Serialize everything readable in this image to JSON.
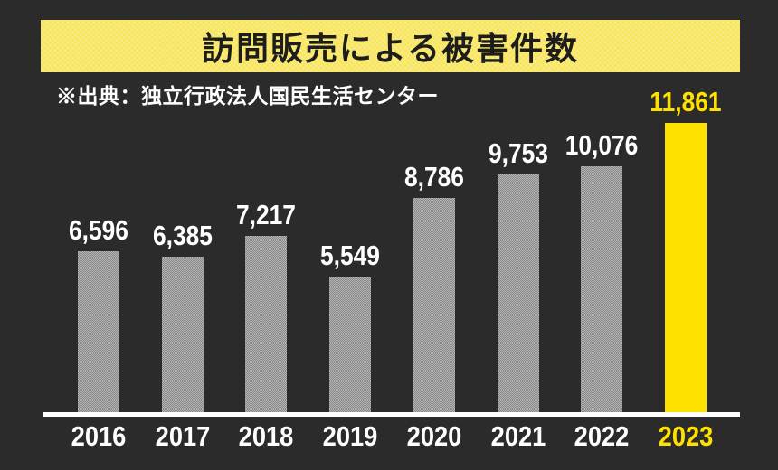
{
  "title": "訪問販売による被害件数",
  "source": "※出典：独立行政法人国民生活センター",
  "colors": {
    "background": "#2b2b2b",
    "banner_bg": "#f7e55d",
    "banner_text": "#1d1d1d",
    "bar_gray_light": "#b4b4b4",
    "bar_gray_dark": "#898989",
    "highlight_yellow": "#ffe100",
    "label_white": "#ffffff",
    "axis_line": "#ffffff"
  },
  "chart_data": {
    "type": "bar",
    "title": "訪問販売による被害件数",
    "subtitle": "※出典：独立行政法人国民生活センター",
    "categories": [
      "2016",
      "2017",
      "2018",
      "2019",
      "2020",
      "2021",
      "2022",
      "2023"
    ],
    "values": [
      6596,
      6385,
      7217,
      5549,
      8786,
      9753,
      10076,
      11861
    ],
    "value_labels": [
      "6,596",
      "6,385",
      "7,217",
      "5,549",
      "8,786",
      "9,753",
      "10,076",
      "11,861"
    ],
    "highlight_index": 7,
    "xlabel": "",
    "ylabel": "",
    "ylim": [
      0,
      11861
    ],
    "grid": false,
    "legend": false,
    "bar_color": "gray-halftone",
    "highlight_bar_color": "#ffe100"
  }
}
